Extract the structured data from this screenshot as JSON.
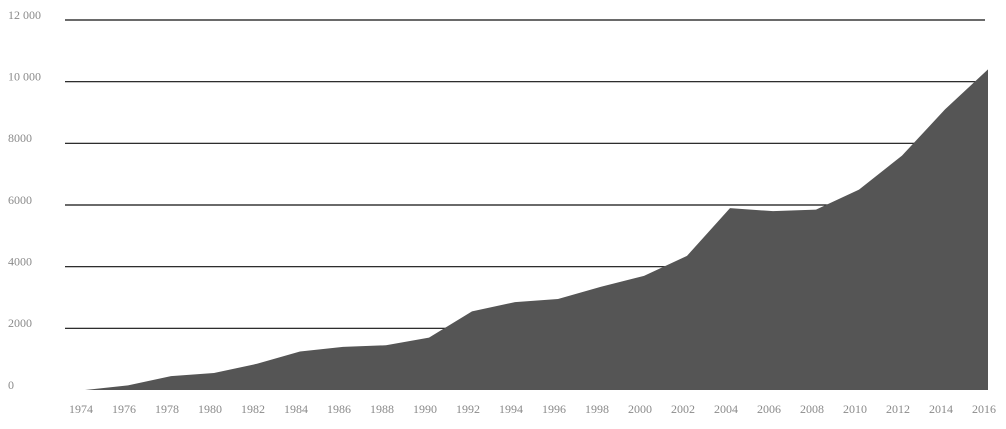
{
  "chart_data": {
    "type": "area",
    "categories": [
      "1974",
      "1976",
      "1978",
      "1980",
      "1982",
      "1984",
      "1986",
      "1988",
      "1990",
      "1992",
      "1994",
      "1996",
      "1998",
      "2000",
      "2002",
      "2004",
      "2006",
      "2008",
      "2010",
      "2012",
      "2014",
      "2016"
    ],
    "values": [
      0,
      150,
      450,
      550,
      850,
      1250,
      1400,
      1450,
      1700,
      2550,
      2850,
      2950,
      3350,
      3700,
      4350,
      5900,
      5800,
      5850,
      6500,
      7600,
      9100,
      10400
    ],
    "color": "#555555",
    "ylim": [
      0,
      12000
    ],
    "yticks": [
      0,
      2000,
      4000,
      6000,
      8000,
      {
        "value": 10000,
        "label": "10 000"
      },
      {
        "value": 12000,
        "label": "12 000"
      }
    ],
    "grid": true
  }
}
